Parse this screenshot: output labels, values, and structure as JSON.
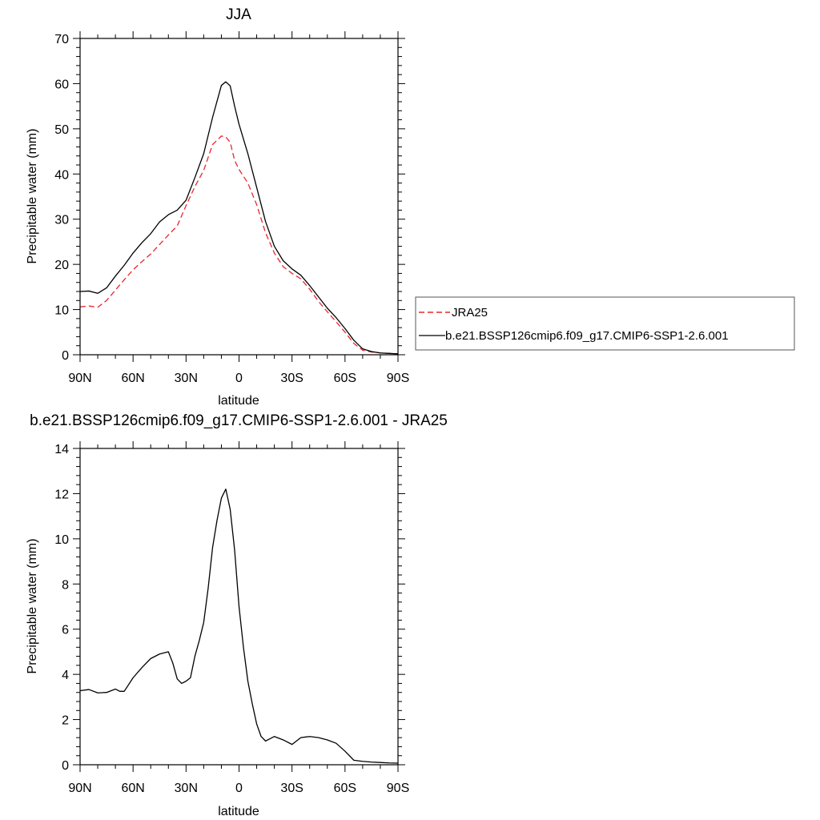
{
  "chart_data": [
    {
      "type": "line",
      "title": "JJA",
      "xlabel": "latitude",
      "ylabel": "Precipitable water (mm)",
      "xlim": [
        90,
        -90
      ],
      "ylim": [
        0,
        70
      ],
      "yticks": [
        0,
        10,
        20,
        30,
        40,
        50,
        60,
        70
      ],
      "xticks": [
        90,
        60,
        30,
        0,
        -30,
        -60,
        -90
      ],
      "xtick_labels": [
        "90N",
        "60N",
        "30N",
        "0",
        "30S",
        "60S",
        "90S"
      ],
      "grid": false,
      "legend_position": "right",
      "series": [
        {
          "name": "JRA25",
          "color": "#e8262d",
          "dash": "dashed",
          "x": [
            90,
            85,
            80,
            75,
            70,
            65,
            60,
            55,
            50,
            45,
            40,
            35,
            30,
            25,
            20,
            15,
            10,
            7.5,
            5,
            2.5,
            0,
            -5,
            -10,
            -15,
            -20,
            -25,
            -30,
            -35,
            -40,
            -45,
            -50,
            -55,
            -60,
            -65,
            -70,
            -75,
            -80,
            -85,
            -90
          ],
          "y": [
            10.6,
            10.8,
            10.5,
            12.0,
            14.3,
            16.6,
            18.8,
            20.6,
            22.3,
            24.4,
            26.5,
            28.5,
            33.0,
            37.2,
            40.8,
            46.5,
            48.4,
            48.2,
            47.0,
            43.0,
            41.0,
            38.0,
            33.2,
            27.0,
            22.5,
            19.5,
            18.0,
            16.8,
            14.5,
            11.8,
            9.5,
            7.3,
            5.0,
            2.5,
            1.0,
            0.6,
            0.4,
            0.3,
            0.2
          ]
        },
        {
          "name": "b.e21.BSSP126cmip6.f09_g17.CMIP6-SSP1-2.6.001",
          "color": "#000000",
          "dash": "solid",
          "x": [
            90,
            85,
            80,
            75,
            70,
            65,
            60,
            55,
            50,
            45,
            40,
            35,
            30,
            25,
            20,
            15,
            10,
            7.5,
            5,
            2.5,
            0,
            -5,
            -10,
            -15,
            -20,
            -25,
            -30,
            -35,
            -40,
            -45,
            -50,
            -55,
            -60,
            -65,
            -70,
            -75,
            -80,
            -85,
            -90
          ],
          "y": [
            14.0,
            14.1,
            13.6,
            14.8,
            17.4,
            19.8,
            22.5,
            24.8,
            26.8,
            29.4,
            31.0,
            32.0,
            34.2,
            39.2,
            44.5,
            52.5,
            59.6,
            60.4,
            59.5,
            55.0,
            51.0,
            44.5,
            37.0,
            29.5,
            24.0,
            20.8,
            19.0,
            17.6,
            15.3,
            12.8,
            10.3,
            8.2,
            5.8,
            3.2,
            1.3,
            0.7,
            0.4,
            0.3,
            0.2
          ]
        }
      ]
    },
    {
      "type": "line",
      "title": "b.e21.BSSP126cmip6.f09_g17.CMIP6-SSP1-2.6.001 - JRA25",
      "xlabel": "latitude",
      "ylabel": "Precipitable water (mm)",
      "xlim": [
        90,
        -90
      ],
      "ylim": [
        0,
        14
      ],
      "yticks": [
        0,
        2,
        4,
        6,
        8,
        10,
        12,
        14
      ],
      "xticks": [
        90,
        60,
        30,
        0,
        -30,
        -60,
        -90
      ],
      "xtick_labels": [
        "90N",
        "60N",
        "30N",
        "0",
        "30S",
        "60S",
        "90S"
      ],
      "grid": false,
      "series": [
        {
          "color": "#000000",
          "dash": "solid",
          "x": [
            90,
            85,
            80,
            75,
            70,
            67.5,
            65,
            60,
            55,
            50,
            45,
            40,
            37.5,
            35,
            32.5,
            30,
            27.5,
            25,
            22.5,
            20,
            17.5,
            15,
            12.5,
            10,
            7.5,
            5,
            2.5,
            0,
            -2.5,
            -5,
            -7.5,
            -10,
            -12.5,
            -15,
            -17.5,
            -20,
            -25,
            -30,
            -35,
            -40,
            -45,
            -50,
            -55,
            -60,
            -65,
            -70,
            -75,
            -80,
            -85,
            -90
          ],
          "y": [
            3.28,
            3.33,
            3.18,
            3.2,
            3.35,
            3.25,
            3.25,
            3.85,
            4.3,
            4.7,
            4.9,
            5.0,
            4.5,
            3.8,
            3.6,
            3.7,
            3.85,
            4.8,
            5.5,
            6.3,
            7.8,
            9.6,
            10.8,
            11.8,
            12.2,
            11.3,
            9.5,
            7.0,
            5.2,
            3.7,
            2.7,
            1.8,
            1.25,
            1.05,
            1.15,
            1.25,
            1.1,
            0.9,
            1.2,
            1.25,
            1.2,
            1.1,
            0.95,
            0.6,
            0.2,
            0.15,
            0.12,
            0.1,
            0.08,
            0.07
          ]
        }
      ]
    }
  ]
}
